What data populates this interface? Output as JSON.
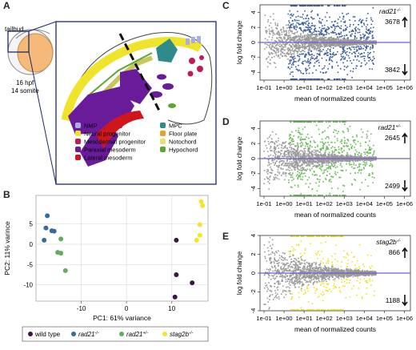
{
  "figure": {
    "panel_a": {
      "letter": "A",
      "tailbud_label": "tailbud",
      "stage_label": "16 hpf",
      "somite_label": "14 somite",
      "legend": [
        {
          "label": "NMP",
          "color": "#a8aee0"
        },
        {
          "label": "Neural progenitor",
          "color": "#f0e42a"
        },
        {
          "label": "Mesodermal progenitor",
          "color": "#c2185b"
        },
        {
          "label": "Paraxial mesoderm",
          "color": "#6a1b9a"
        },
        {
          "label": "Lateral mesoderm",
          "color": "#d0161b"
        },
        {
          "label": "MPC",
          "color": "#2e8b8b"
        },
        {
          "label": "Floor plate",
          "color": "#e8a030"
        },
        {
          "label": "Notochord",
          "color": "#e8e070"
        },
        {
          "label": "Hypochord",
          "color": "#5aa832"
        }
      ]
    },
    "panel_b": {
      "letter": "B",
      "legend": [
        {
          "label": "wild type",
          "color": "#3d1545"
        },
        {
          "label": "rad21",
          "sup": "-/-",
          "color": "#3a6a9a"
        },
        {
          "label": "rad21",
          "sup": "+/-",
          "color": "#5fae5f"
        },
        {
          "label": "stag2b",
          "sup": "-/-",
          "color": "#f4e526"
        }
      ]
    },
    "ma_panels": [
      {
        "letter": "C",
        "genotype": "rad21",
        "sup": "-/-",
        "up": "3678",
        "down": "3842",
        "color": "#3a5d97"
      },
      {
        "letter": "D",
        "genotype": "rad21",
        "sup": "+/-",
        "up": "2645",
        "down": "2499",
        "color": "#66bb55"
      },
      {
        "letter": "E",
        "genotype": "stag2b",
        "sup": "-/-",
        "up": "866",
        "down": "1188",
        "color": "#eee023"
      }
    ]
  },
  "chart_data": [
    {
      "type": "scatter",
      "panel": "B",
      "xlabel": "PC1: 61% variance",
      "ylabel": "PC2: 11% varince",
      "x_ticks": [
        "-10",
        "0",
        "10"
      ],
      "y_ticks": [
        "5",
        "0",
        "-5",
        "-10"
      ],
      "xlim": [
        -20,
        18
      ],
      "ylim": [
        -14,
        12
      ],
      "grid": true,
      "series": [
        {
          "name": "wild type",
          "points": [
            [
              11,
              1
            ],
            [
              11,
              -7.5
            ],
            [
              10.7,
              -13
            ],
            [
              14.5,
              -9.5
            ]
          ]
        },
        {
          "name": "rad21-/-",
          "points": [
            [
              -17.5,
              7
            ],
            [
              -17.8,
              4
            ],
            [
              -18.2,
              1
            ],
            [
              -16.5,
              3.3
            ],
            [
              -16,
              3.2
            ]
          ]
        },
        {
          "name": "rad21+/-",
          "points": [
            [
              -14.5,
              1.3
            ],
            [
              -15.2,
              -2
            ],
            [
              -14.5,
              -2.2
            ],
            [
              -13.5,
              -6.5
            ]
          ]
        },
        {
          "name": "stag2b-/-",
          "points": [
            [
              16.5,
              10.5
            ],
            [
              16.8,
              9.5
            ],
            [
              16.2,
              4.8
            ],
            [
              16.2,
              2.2
            ],
            [
              15.5,
              1
            ]
          ]
        }
      ]
    },
    {
      "type": "scatter",
      "panel": "C",
      "xlabel": "mean of normalized counts",
      "ylabel": "log fold change",
      "x_ticks": [
        "1e-01",
        "1e+00",
        "1e+01",
        "1e+02",
        "1e+03",
        "1e+04",
        "1e+05",
        "1e+06"
      ],
      "y_ticks": [
        "4",
        "2",
        "0",
        "-2",
        "-4"
      ],
      "x_scale": "log",
      "ylim": [
        -5,
        5
      ],
      "up_count": 3678,
      "down_count": 3842,
      "highlight": "significant"
    },
    {
      "type": "scatter",
      "panel": "D",
      "xlabel": "mean of normalized counts",
      "ylabel": "log fold change",
      "x_ticks": [
        "1e-01",
        "1e+00",
        "1e+01",
        "1e+02",
        "1e+03",
        "1e+04",
        "1e+05",
        "1e+06"
      ],
      "y_ticks": [
        "4",
        "2",
        "0",
        "-2",
        "-4"
      ],
      "x_scale": "log",
      "ylim": [
        -5,
        5
      ],
      "up_count": 2645,
      "down_count": 2499,
      "highlight": "significant"
    },
    {
      "type": "scatter",
      "panel": "E",
      "xlabel": "mean of normalized counts",
      "ylabel": "log fold change",
      "x_ticks": [
        "1e-01",
        "1e+00",
        "1e+01",
        "1e+02",
        "1e+03",
        "1e+04",
        "1e+05",
        "1e+06"
      ],
      "y_ticks": [
        "4",
        "2",
        "0",
        "-2",
        "-4"
      ],
      "x_scale": "log",
      "ylim": [
        -4,
        4
      ],
      "up_count": 866,
      "down_count": 1188,
      "highlight": "significant"
    }
  ]
}
